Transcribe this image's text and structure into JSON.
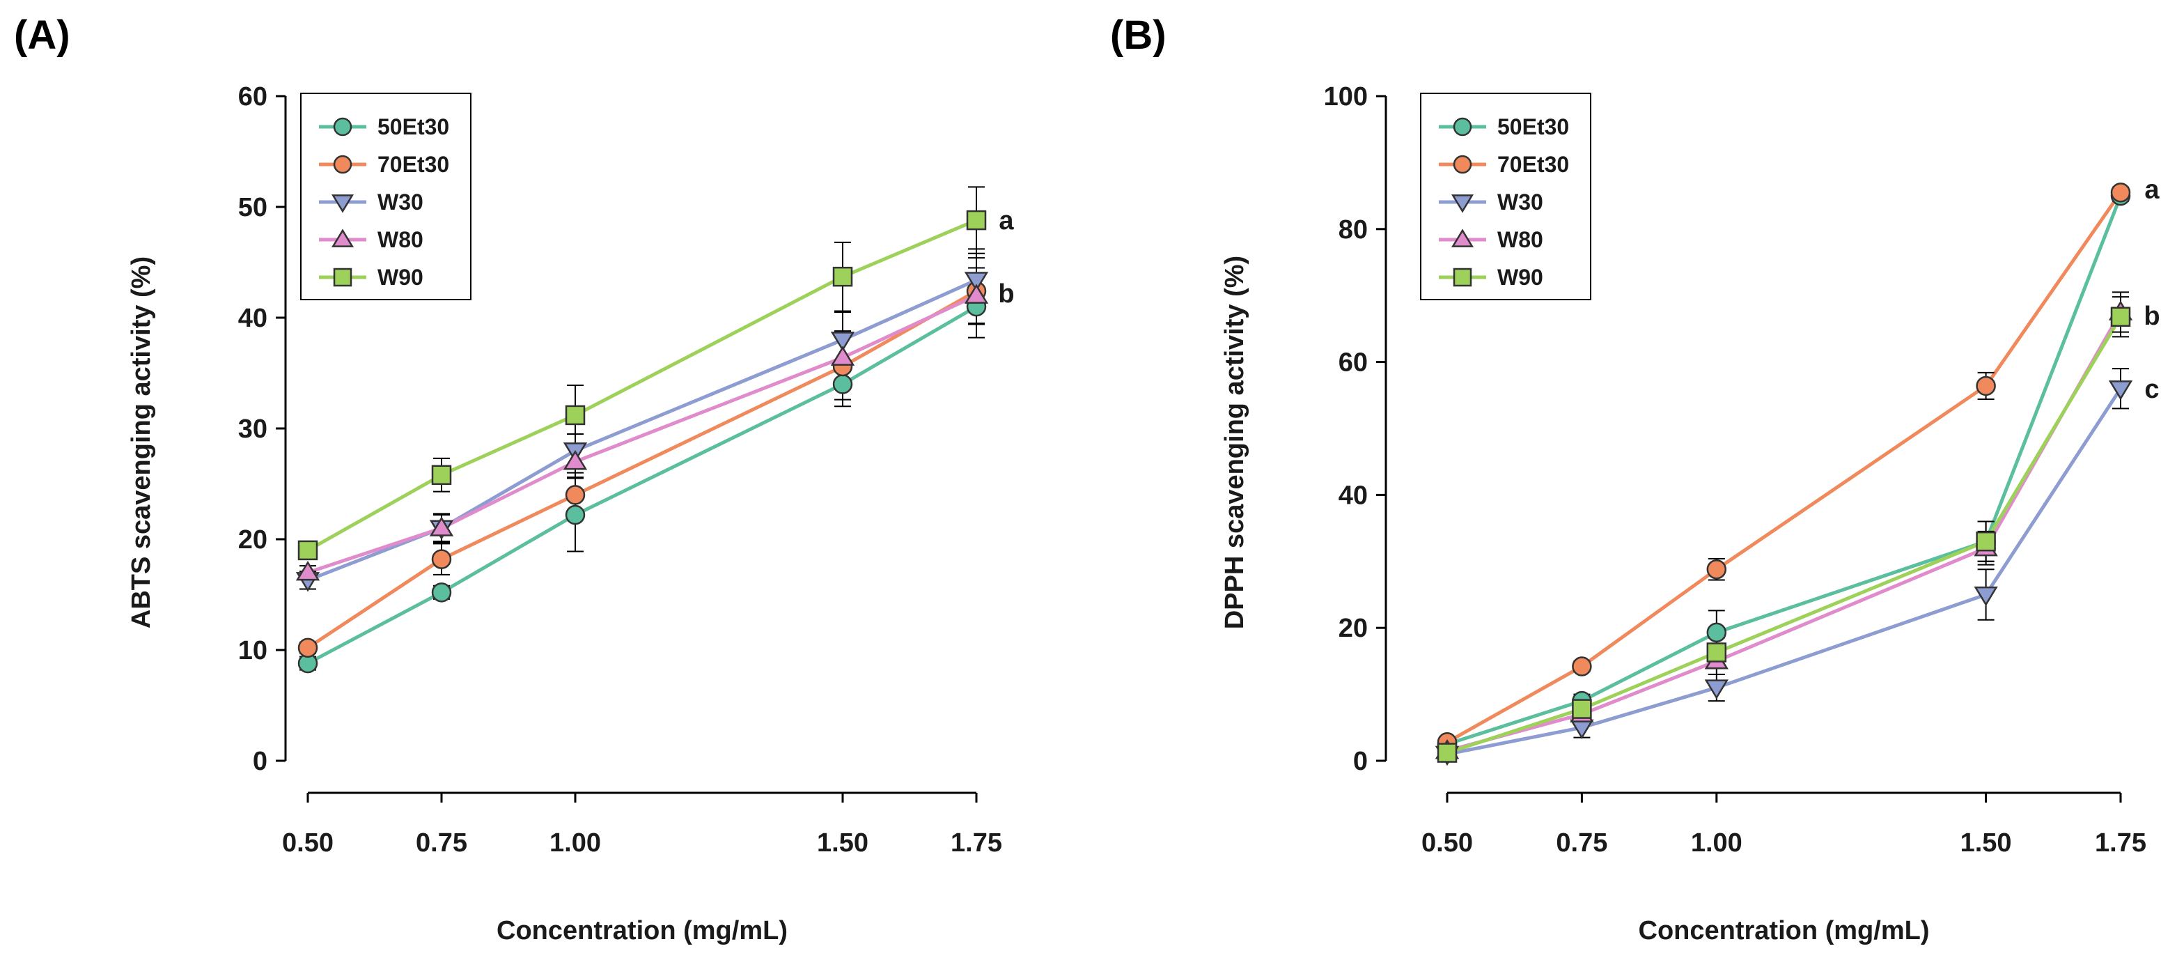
{
  "chart_data": [
    {
      "type": "line",
      "panel": "(A)",
      "title": "",
      "xlabel": "Concentration (mg/mL)",
      "ylabel": "ABTS scavenging activity (%)",
      "x": [
        0.5,
        0.75,
        1.0,
        1.5,
        1.75
      ],
      "x_tick_labels": [
        "0.50",
        "0.75",
        "1.00",
        "1.50",
        "1.75"
      ],
      "xlim": [
        0.5,
        1.75
      ],
      "ylim": [
        0,
        60
      ],
      "y_ticks": [
        0,
        10,
        20,
        30,
        40,
        50,
        60
      ],
      "legend_position": "top-left",
      "series": [
        {
          "name": "50Et30",
          "color": "#5bbf9f",
          "marker": "circle",
          "values": [
            8.8,
            15.2,
            22.2,
            34.0,
            41.0
          ],
          "errors": [
            0.6,
            0.6,
            3.3,
            2.0,
            2.8
          ]
        },
        {
          "name": "70Et30",
          "color": "#f08a5d",
          "marker": "circle",
          "values": [
            10.2,
            18.2,
            24.0,
            35.6,
            42.4
          ],
          "errors": [
            0.5,
            1.4,
            2.0,
            3.0,
            3.0
          ]
        },
        {
          "name": "W30",
          "color": "#8e9dd1",
          "marker": "triangle-down",
          "values": [
            16.3,
            21.0,
            28.0,
            38.0,
            43.4
          ],
          "errors": [
            0.8,
            1.3,
            1.5,
            2.5,
            2.8
          ]
        },
        {
          "name": "W80",
          "color": "#e08bcb",
          "marker": "triangle-up",
          "values": [
            17.0,
            21.0,
            27.0,
            36.4,
            42.0
          ],
          "errors": [
            0.6,
            1.2,
            1.4,
            2.4,
            2.5
          ]
        },
        {
          "name": "W90",
          "color": "#9ed15a",
          "marker": "square",
          "values": [
            19.0,
            25.8,
            31.2,
            43.7,
            48.8
          ],
          "errors": [
            0.7,
            1.5,
            2.7,
            3.1,
            3.0
          ]
        }
      ],
      "annotations": [
        {
          "text": "a",
          "x": 1.75,
          "y": 48.8
        },
        {
          "text": "b",
          "x": 1.75,
          "y": 42.2
        }
      ]
    },
    {
      "type": "line",
      "panel": "(B)",
      "title": "",
      "xlabel": "Concentration (mg/mL)",
      "ylabel": "DPPH scavenging activity (%)",
      "x": [
        0.5,
        0.75,
        1.0,
        1.5,
        1.75
      ],
      "x_tick_labels": [
        "0.50",
        "0.75",
        "1.00",
        "1.50",
        "1.75"
      ],
      "xlim": [
        0.5,
        1.75
      ],
      "ylim": [
        0,
        100
      ],
      "y_ticks": [
        0,
        20,
        40,
        60,
        80,
        100
      ],
      "legend_position": "top-left",
      "series": [
        {
          "name": "50Et30",
          "color": "#5bbf9f",
          "marker": "circle",
          "values": [
            2.5,
            9.0,
            19.3,
            33.0,
            85.0
          ],
          "errors": [
            0.4,
            1.0,
            3.3,
            3.0,
            0.8
          ]
        },
        {
          "name": "70Et30",
          "color": "#f08a5d",
          "marker": "circle",
          "values": [
            2.8,
            14.2,
            28.8,
            56.4,
            85.5
          ],
          "errors": [
            0.4,
            0.8,
            1.6,
            2.0,
            0.8
          ]
        },
        {
          "name": "W30",
          "color": "#8e9dd1",
          "marker": "triangle-down",
          "values": [
            1.0,
            5.0,
            11.0,
            25.0,
            56.0
          ],
          "errors": [
            0.3,
            1.5,
            2.0,
            3.8,
            3.0
          ]
        },
        {
          "name": "W80",
          "color": "#e08bcb",
          "marker": "triangle-up",
          "values": [
            1.5,
            7.0,
            15.0,
            32.0,
            67.5
          ],
          "errors": [
            0.3,
            1.2,
            2.0,
            2.5,
            3.0
          ]
        },
        {
          "name": "W90",
          "color": "#9ed15a",
          "marker": "square",
          "values": [
            1.2,
            7.8,
            16.3,
            33.0,
            66.8
          ],
          "errors": [
            0.3,
            1.2,
            2.2,
            3.0,
            3.0
          ]
        }
      ],
      "annotations": [
        {
          "text": "a",
          "x": 1.75,
          "y": 86.0
        },
        {
          "text": "b",
          "x": 1.75,
          "y": 67.0
        },
        {
          "text": "c",
          "x": 1.75,
          "y": 56.0
        }
      ]
    }
  ]
}
